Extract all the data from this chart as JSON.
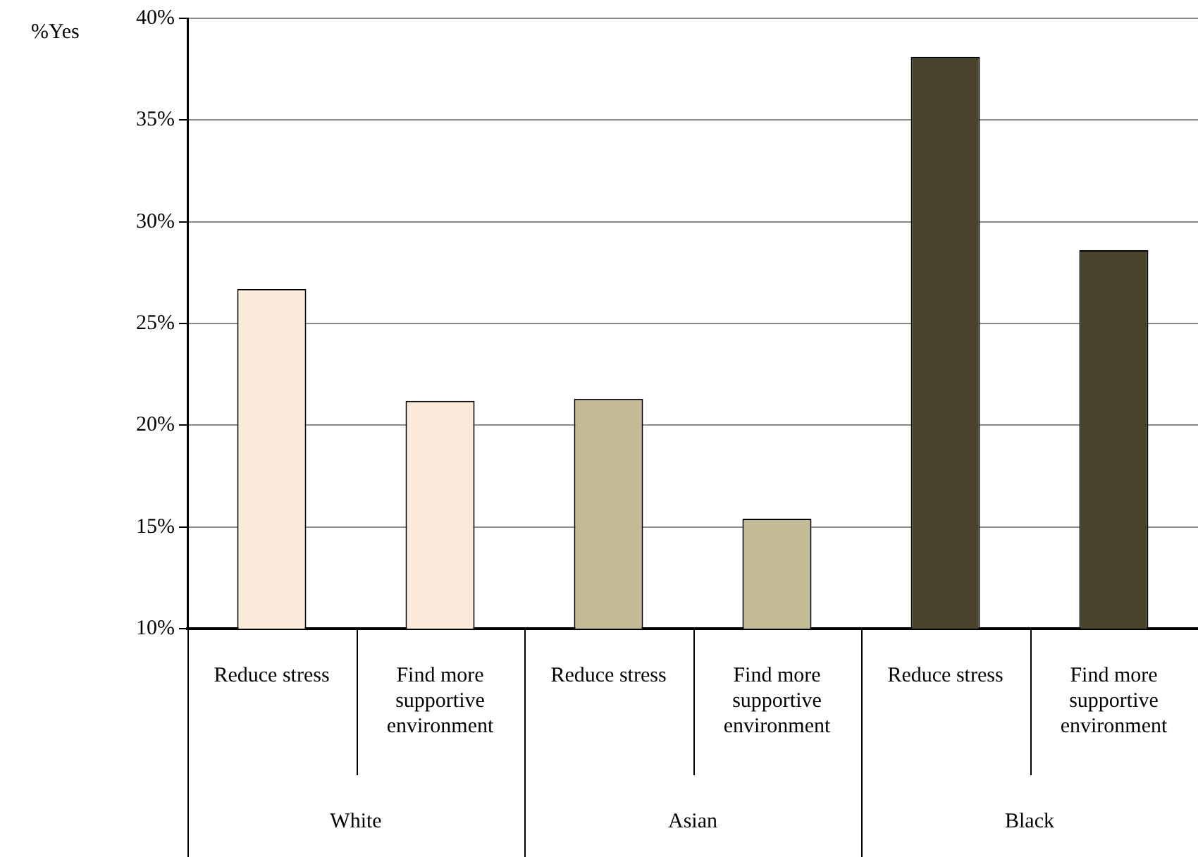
{
  "chart_data": {
    "type": "bar",
    "ylabel": "%Yes",
    "categories": [
      "Reduce stress",
      "Find more supportive environment",
      "Reduce stress",
      "Find more supportive environment",
      "Reduce stress",
      "Find more supportive environment"
    ],
    "series": [
      {
        "name": "White",
        "color": "#fbe9da",
        "values": [
          26.7,
          21.2,
          null,
          null,
          null,
          null
        ]
      },
      {
        "name": "Asian",
        "color": "#c3bb96",
        "values": [
          null,
          null,
          21.3,
          15.4,
          null,
          null
        ]
      },
      {
        "name": "Black",
        "color": "#48432a",
        "values": [
          null,
          null,
          null,
          null,
          38.1,
          28.6
        ]
      }
    ],
    "ylim": [
      10,
      40
    ],
    "yticks": [
      {
        "value": 10,
        "label": "10%"
      },
      {
        "value": 15,
        "label": "15%"
      },
      {
        "value": 20,
        "label": "20%"
      },
      {
        "value": 25,
        "label": "25%"
      },
      {
        "value": 30,
        "label": "30%"
      },
      {
        "value": 35,
        "label": "35%"
      },
      {
        "value": 40,
        "label": "40%"
      }
    ],
    "grid": "y",
    "legend": false
  }
}
